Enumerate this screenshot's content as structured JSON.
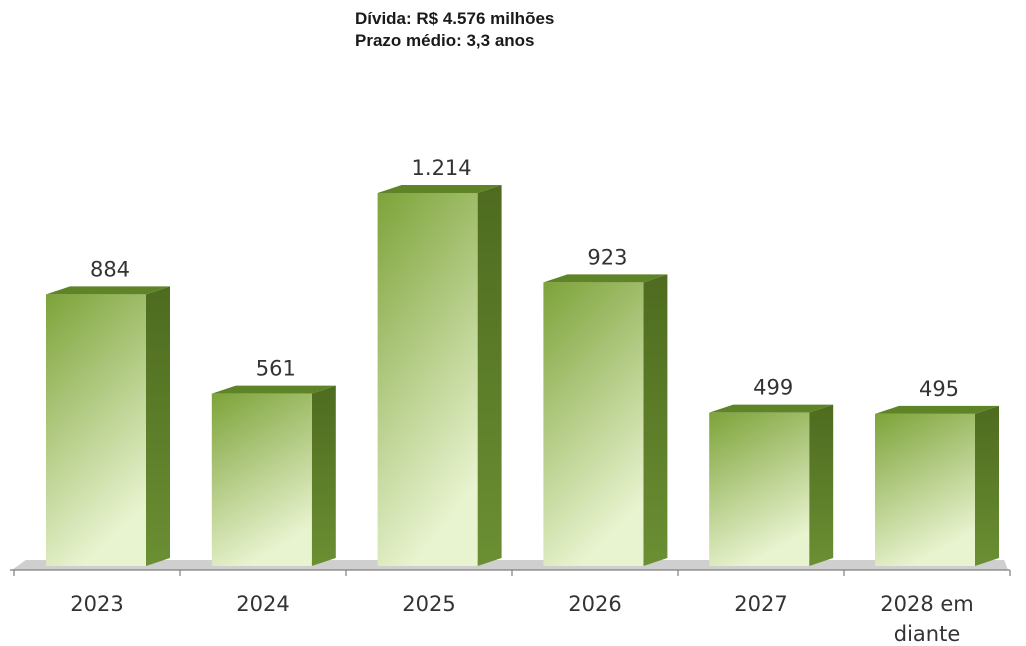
{
  "summary": {
    "line1": "Dívida: R$ 4.576 milhões",
    "line2": "Prazo médio: 3,3 anos"
  },
  "colors": {
    "bar_front_top": "#7da339",
    "bar_front_bottom": "#e8f3cf",
    "bar_side": "#4e6b1f",
    "bar_top": "#5f8427",
    "floor": "#c0c0c0",
    "axis": "#7f7f7f",
    "text": "#333333"
  },
  "chart_data": {
    "type": "bar",
    "categories": [
      "2023",
      "2024",
      "2025",
      "2026",
      "2027",
      "2028 em diante"
    ],
    "category_lines": [
      [
        "2023"
      ],
      [
        "2024"
      ],
      [
        "2025"
      ],
      [
        "2026"
      ],
      [
        "2027"
      ],
      [
        "2028 em",
        "diante"
      ]
    ],
    "values": [
      884,
      561,
      1214,
      923,
      499,
      495
    ],
    "data_labels": [
      "884",
      "561",
      "1.214",
      "923",
      "499",
      "495"
    ],
    "title": "",
    "xlabel": "",
    "ylabel": "",
    "ylim": [
      0,
      1300
    ],
    "grid": false,
    "legend": "none",
    "style": "3d-column"
  }
}
